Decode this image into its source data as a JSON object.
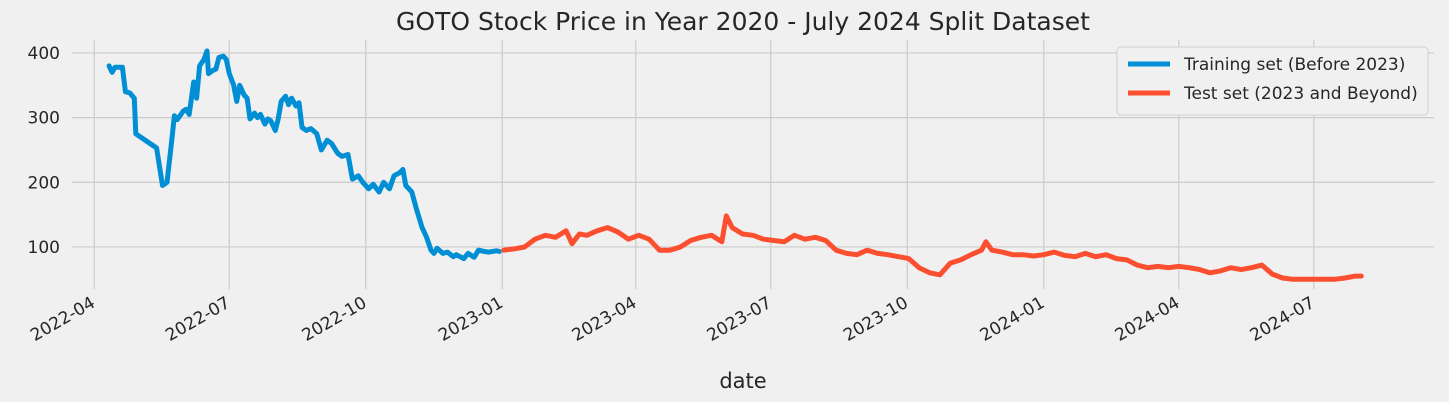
{
  "chart_data": {
    "type": "line",
    "title": "GOTO Stock Price in Year 2020 - July 2024 Split Dataset",
    "xlabel": "date",
    "ylabel": "",
    "ylim": [
      35,
      420
    ],
    "xlim": [
      "2022-03-17",
      "2024-09-20"
    ],
    "yticks": [
      100,
      200,
      300,
      400
    ],
    "xticks": [
      "2022-04",
      "2022-07",
      "2022-10",
      "2023-01",
      "2023-04",
      "2023-07",
      "2023-10",
      "2024-01",
      "2024-04",
      "2024-07"
    ],
    "grid": true,
    "legend_position": "top-right",
    "series": [
      {
        "name": "Training set (Before 2023)",
        "color": "#008fd5",
        "points": [
          [
            "2022-04-11",
            380
          ],
          [
            "2022-04-13",
            370
          ],
          [
            "2022-04-15",
            378
          ],
          [
            "2022-04-20",
            378
          ],
          [
            "2022-04-22",
            340
          ],
          [
            "2022-04-25",
            338
          ],
          [
            "2022-04-28",
            330
          ],
          [
            "2022-04-29",
            275
          ],
          [
            "2022-05-13",
            253
          ],
          [
            "2022-05-17",
            195
          ],
          [
            "2022-05-20",
            200
          ],
          [
            "2022-05-23",
            260
          ],
          [
            "2022-05-25",
            303
          ],
          [
            "2022-05-27",
            297
          ],
          [
            "2022-05-31",
            310
          ],
          [
            "2022-06-02",
            313
          ],
          [
            "2022-06-04",
            305
          ],
          [
            "2022-06-07",
            355
          ],
          [
            "2022-06-09",
            330
          ],
          [
            "2022-06-11",
            380
          ],
          [
            "2022-06-14",
            390
          ],
          [
            "2022-06-16",
            403
          ],
          [
            "2022-06-17",
            368
          ],
          [
            "2022-06-20",
            373
          ],
          [
            "2022-06-22",
            375
          ],
          [
            "2022-06-24",
            393
          ],
          [
            "2022-06-27",
            395
          ],
          [
            "2022-06-29",
            390
          ],
          [
            "2022-07-01",
            368
          ],
          [
            "2022-07-04",
            350
          ],
          [
            "2022-07-06",
            325
          ],
          [
            "2022-07-08",
            350
          ],
          [
            "2022-07-11",
            335
          ],
          [
            "2022-07-13",
            330
          ],
          [
            "2022-07-15",
            298
          ],
          [
            "2022-07-18",
            307
          ],
          [
            "2022-07-20",
            300
          ],
          [
            "2022-07-22",
            305
          ],
          [
            "2022-07-25",
            290
          ],
          [
            "2022-07-27",
            298
          ],
          [
            "2022-07-29",
            295
          ],
          [
            "2022-08-01",
            280
          ],
          [
            "2022-08-03",
            298
          ],
          [
            "2022-08-05",
            325
          ],
          [
            "2022-08-08",
            333
          ],
          [
            "2022-08-10",
            320
          ],
          [
            "2022-08-12",
            330
          ],
          [
            "2022-08-15",
            318
          ],
          [
            "2022-08-17",
            323
          ],
          [
            "2022-08-19",
            285
          ],
          [
            "2022-08-22",
            280
          ],
          [
            "2022-08-25",
            283
          ],
          [
            "2022-08-29",
            275
          ],
          [
            "2022-09-01",
            250
          ],
          [
            "2022-09-05",
            265
          ],
          [
            "2022-09-08",
            260
          ],
          [
            "2022-09-12",
            245
          ],
          [
            "2022-09-15",
            240
          ],
          [
            "2022-09-19",
            243
          ],
          [
            "2022-09-22",
            205
          ],
          [
            "2022-09-26",
            210
          ],
          [
            "2022-09-29",
            200
          ],
          [
            "2022-10-03",
            190
          ],
          [
            "2022-10-06",
            197
          ],
          [
            "2022-10-10",
            185
          ],
          [
            "2022-10-13",
            200
          ],
          [
            "2022-10-17",
            190
          ],
          [
            "2022-10-20",
            210
          ],
          [
            "2022-10-24",
            215
          ],
          [
            "2022-10-26",
            220
          ],
          [
            "2022-10-28",
            195
          ],
          [
            "2022-11-01",
            185
          ],
          [
            "2022-11-04",
            160
          ],
          [
            "2022-11-08",
            130
          ],
          [
            "2022-11-11",
            115
          ],
          [
            "2022-11-14",
            95
          ],
          [
            "2022-11-16",
            90
          ],
          [
            "2022-11-18",
            98
          ],
          [
            "2022-11-22",
            90
          ],
          [
            "2022-11-25",
            92
          ],
          [
            "2022-11-29",
            85
          ],
          [
            "2022-12-01",
            88
          ],
          [
            "2022-12-06",
            82
          ],
          [
            "2022-12-09",
            90
          ],
          [
            "2022-12-13",
            84
          ],
          [
            "2022-12-16",
            95
          ],
          [
            "2022-12-20",
            93
          ],
          [
            "2022-12-23",
            92
          ],
          [
            "2022-12-28",
            94
          ],
          [
            "2022-12-30",
            93
          ]
        ]
      },
      {
        "name": "Test set (2023 and Beyond)",
        "color": "#fc4f30",
        "points": [
          [
            "2023-01-02",
            95
          ],
          [
            "2023-01-09",
            97
          ],
          [
            "2023-01-16",
            100
          ],
          [
            "2023-01-23",
            112
          ],
          [
            "2023-01-30",
            118
          ],
          [
            "2023-02-06",
            115
          ],
          [
            "2023-02-13",
            125
          ],
          [
            "2023-02-17",
            105
          ],
          [
            "2023-02-22",
            120
          ],
          [
            "2023-02-27",
            118
          ],
          [
            "2023-03-06",
            125
          ],
          [
            "2023-03-13",
            130
          ],
          [
            "2023-03-20",
            123
          ],
          [
            "2023-03-27",
            112
          ],
          [
            "2023-04-03",
            118
          ],
          [
            "2023-04-10",
            112
          ],
          [
            "2023-04-17",
            95
          ],
          [
            "2023-04-24",
            95
          ],
          [
            "2023-05-01",
            100
          ],
          [
            "2023-05-08",
            110
          ],
          [
            "2023-05-15",
            115
          ],
          [
            "2023-05-22",
            118
          ],
          [
            "2023-05-29",
            108
          ],
          [
            "2023-06-01",
            148
          ],
          [
            "2023-06-05",
            130
          ],
          [
            "2023-06-12",
            120
          ],
          [
            "2023-06-19",
            118
          ],
          [
            "2023-06-26",
            112
          ],
          [
            "2023-07-03",
            110
          ],
          [
            "2023-07-10",
            108
          ],
          [
            "2023-07-17",
            118
          ],
          [
            "2023-07-24",
            112
          ],
          [
            "2023-07-31",
            115
          ],
          [
            "2023-08-07",
            110
          ],
          [
            "2023-08-14",
            95
          ],
          [
            "2023-08-21",
            90
          ],
          [
            "2023-08-28",
            88
          ],
          [
            "2023-09-04",
            95
          ],
          [
            "2023-09-11",
            90
          ],
          [
            "2023-09-18",
            88
          ],
          [
            "2023-09-25",
            85
          ],
          [
            "2023-10-02",
            82
          ],
          [
            "2023-10-09",
            68
          ],
          [
            "2023-10-16",
            60
          ],
          [
            "2023-10-23",
            57
          ],
          [
            "2023-10-30",
            75
          ],
          [
            "2023-11-06",
            80
          ],
          [
            "2023-11-13",
            88
          ],
          [
            "2023-11-20",
            95
          ],
          [
            "2023-11-23",
            108
          ],
          [
            "2023-11-27",
            95
          ],
          [
            "2023-12-04",
            92
          ],
          [
            "2023-12-11",
            88
          ],
          [
            "2023-12-18",
            88
          ],
          [
            "2023-12-25",
            86
          ],
          [
            "2024-01-01",
            88
          ],
          [
            "2024-01-08",
            92
          ],
          [
            "2024-01-15",
            87
          ],
          [
            "2024-01-22",
            85
          ],
          [
            "2024-01-29",
            90
          ],
          [
            "2024-02-05",
            85
          ],
          [
            "2024-02-12",
            88
          ],
          [
            "2024-02-19",
            82
          ],
          [
            "2024-02-26",
            80
          ],
          [
            "2024-03-04",
            72
          ],
          [
            "2024-03-11",
            68
          ],
          [
            "2024-03-18",
            70
          ],
          [
            "2024-03-25",
            68
          ],
          [
            "2024-04-01",
            70
          ],
          [
            "2024-04-08",
            68
          ],
          [
            "2024-04-15",
            65
          ],
          [
            "2024-04-22",
            60
          ],
          [
            "2024-04-29",
            63
          ],
          [
            "2024-05-06",
            68
          ],
          [
            "2024-05-13",
            65
          ],
          [
            "2024-05-20",
            68
          ],
          [
            "2024-05-27",
            72
          ],
          [
            "2024-06-03",
            58
          ],
          [
            "2024-06-10",
            52
          ],
          [
            "2024-06-17",
            50
          ],
          [
            "2024-06-24",
            50
          ],
          [
            "2024-07-01",
            50
          ],
          [
            "2024-07-08",
            50
          ],
          [
            "2024-07-15",
            50
          ],
          [
            "2024-07-22",
            52
          ],
          [
            "2024-07-29",
            55
          ],
          [
            "2024-08-02",
            55
          ]
        ]
      }
    ]
  }
}
